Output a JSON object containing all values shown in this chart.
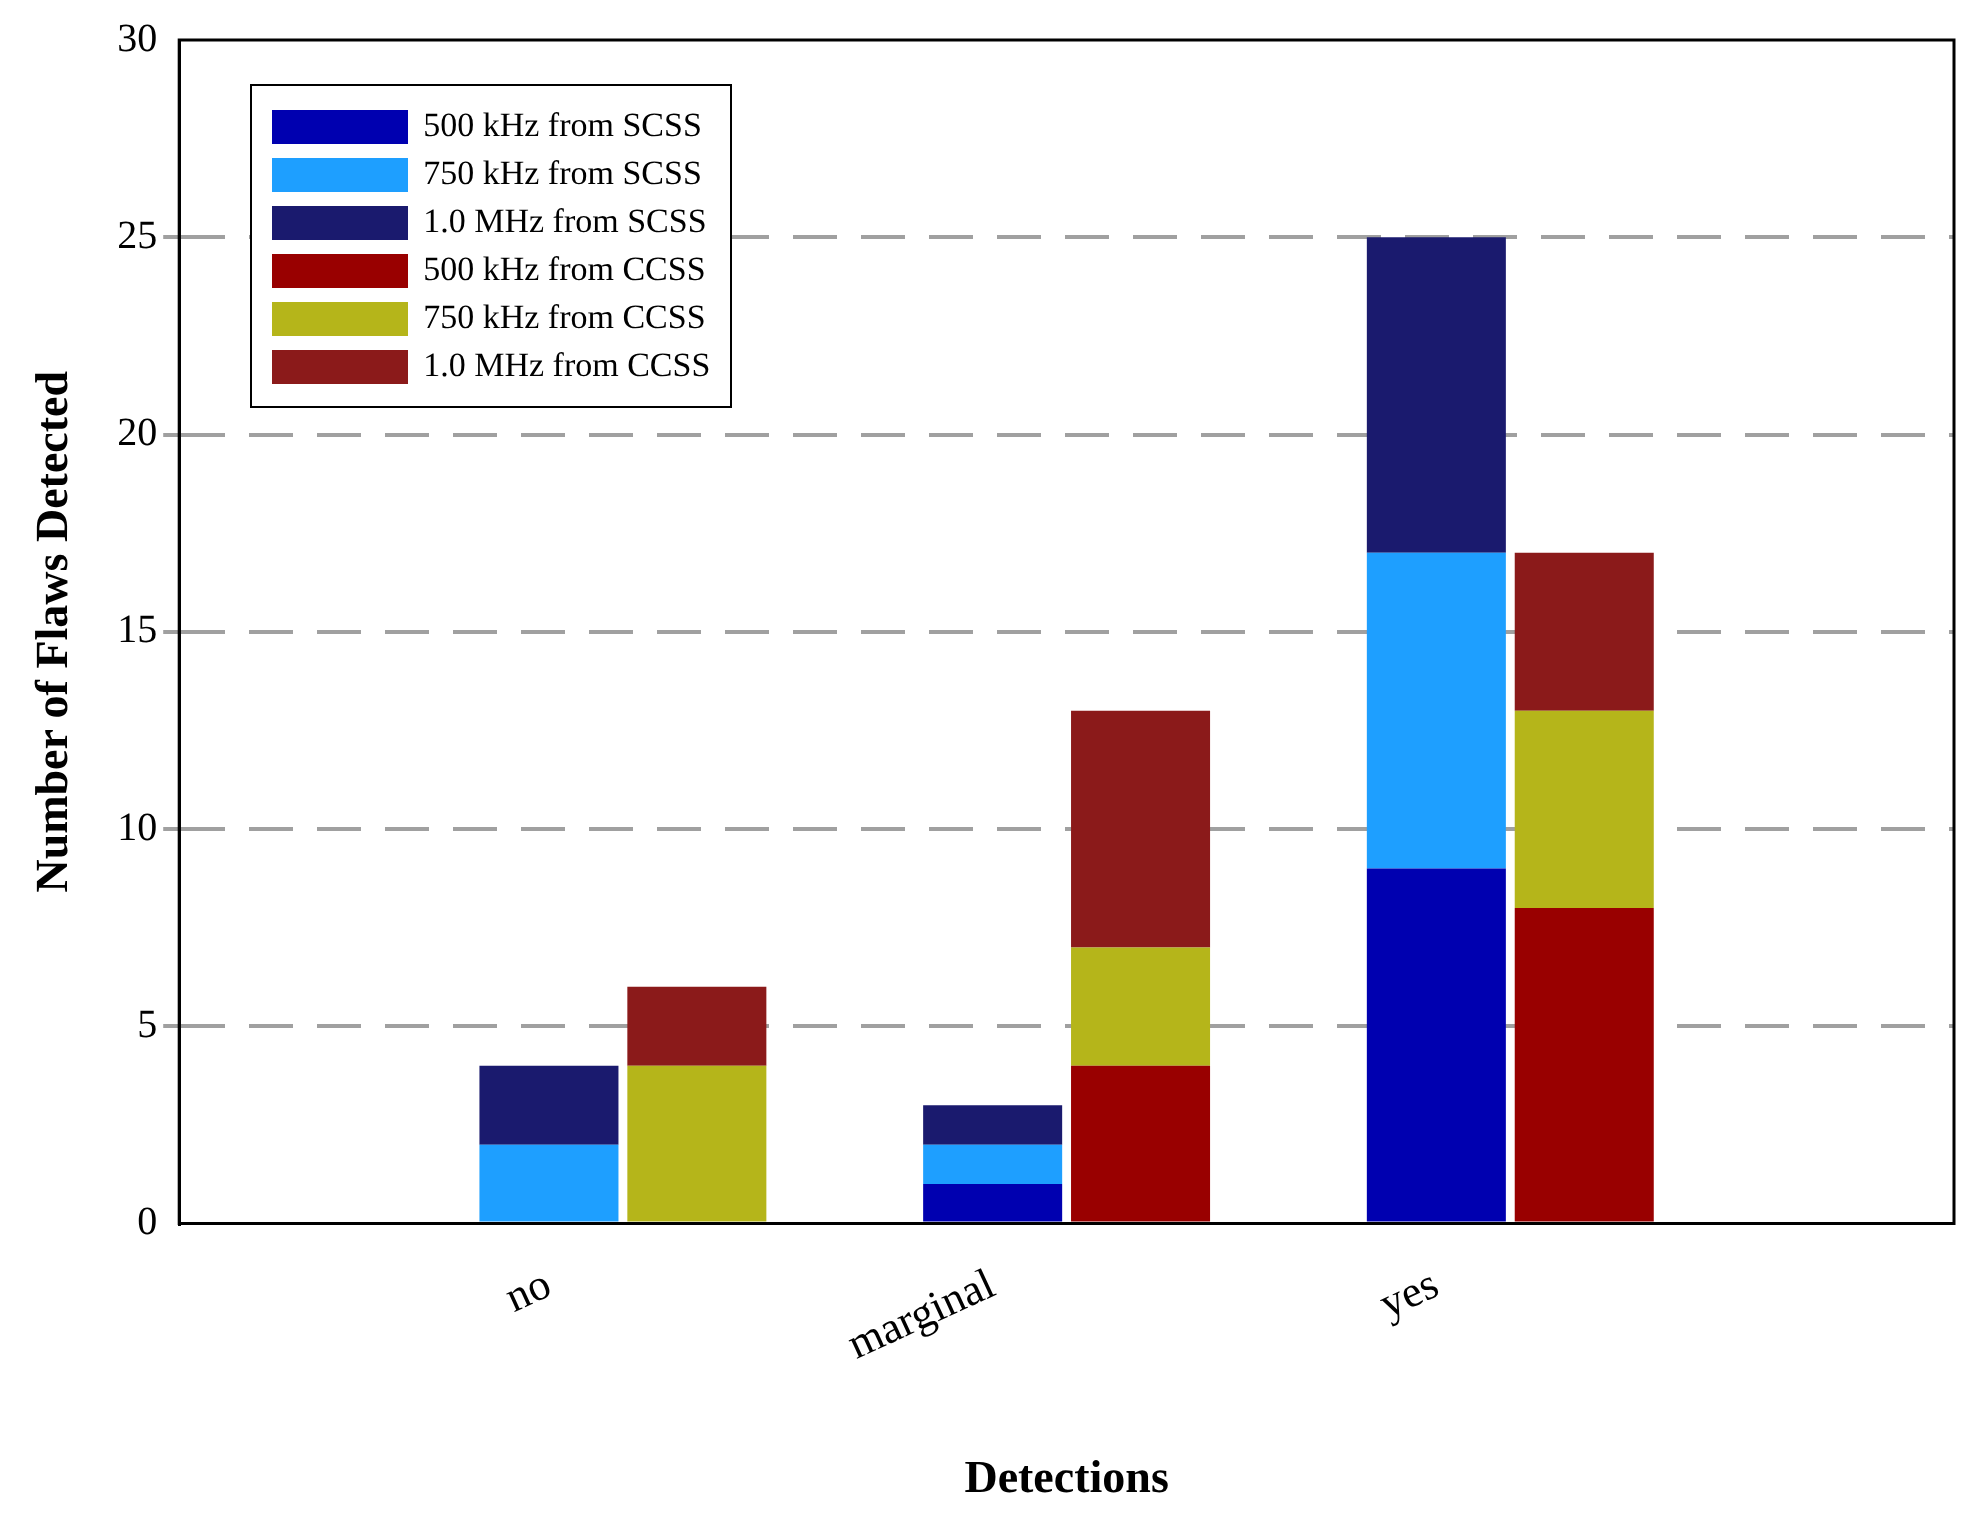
{
  "chart_data": {
    "type": "bar",
    "stacked": true,
    "xlabel": "Detections",
    "ylabel": "Number of Flaws Detected",
    "categories": [
      null,
      null,
      "no",
      null,
      null,
      "marginal",
      null,
      null,
      "yes",
      null,
      null,
      null
    ],
    "series": [
      {
        "name": "500 kHz from SCSS",
        "color": "#0000b0",
        "values": [
          null,
          null,
          0,
          null,
          null,
          1,
          null,
          null,
          9,
          null,
          null,
          null
        ]
      },
      {
        "name": "750 kHz from SCSS",
        "color": "#1e9fff",
        "values": [
          null,
          null,
          2,
          null,
          null,
          1,
          null,
          null,
          8,
          null,
          null,
          null
        ]
      },
      {
        "name": "1.0 MHz from SCSS",
        "color": "#1a1a6e",
        "values": [
          null,
          null,
          2,
          null,
          null,
          1,
          null,
          null,
          8,
          null,
          null,
          null
        ]
      },
      {
        "name": "500 kHz from CCSS",
        "color": "#990000",
        "values": [
          null,
          null,
          null,
          0,
          null,
          null,
          4,
          null,
          null,
          8,
          null,
          null
        ]
      },
      {
        "name": "750 kHz from CCSS",
        "color": "#b5b51a",
        "values": [
          null,
          null,
          null,
          4,
          null,
          null,
          3,
          null,
          null,
          5,
          null,
          null
        ]
      },
      {
        "name": "1.0 MHz from CCSS",
        "color": "#8b1a1a",
        "values": [
          null,
          null,
          null,
          2,
          null,
          null,
          6,
          null,
          null,
          4,
          null,
          null
        ]
      }
    ],
    "ylim": [
      0,
      30
    ],
    "yticks": [
      0,
      5,
      10,
      15,
      20,
      25,
      30
    ],
    "grid": "y",
    "legend": "top left"
  }
}
